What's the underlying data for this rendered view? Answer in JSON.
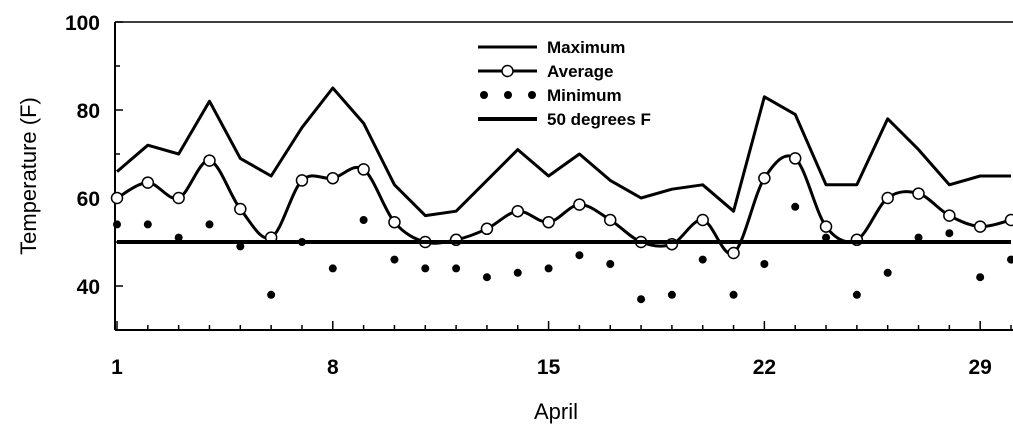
{
  "chart_data": {
    "type": "line",
    "title": "",
    "xlabel": "April",
    "ylabel": "Temperature (F)",
    "x": [
      1,
      2,
      3,
      4,
      5,
      6,
      7,
      8,
      9,
      10,
      11,
      12,
      13,
      14,
      15,
      16,
      17,
      18,
      19,
      20,
      21,
      22,
      23,
      24,
      25,
      26,
      27,
      28,
      29,
      30
    ],
    "xlim": [
      1,
      30
    ],
    "ylim": [
      30,
      100
    ],
    "x_ticks": [
      1,
      8,
      15,
      22,
      29
    ],
    "x_tick_labels": [
      "1",
      "8",
      "15",
      "22",
      "29"
    ],
    "y_ticks": [
      40,
      60,
      80,
      100
    ],
    "y_tick_labels": [
      "40",
      "60",
      "80",
      "100"
    ],
    "grid": false,
    "legend_position": "top-center",
    "series": [
      {
        "name": "Maximum",
        "style": "solid",
        "color": "#000000",
        "values": [
          66,
          72,
          70,
          82,
          69,
          65,
          76,
          85,
          77,
          63,
          56,
          57,
          64,
          71,
          65,
          70,
          64,
          60,
          62,
          63,
          57,
          83,
          79,
          63,
          63,
          78,
          71,
          63,
          65,
          65
        ]
      },
      {
        "name": "Average",
        "style": "line-circle",
        "color": "#000000",
        "values": [
          60,
          63.5,
          60,
          68.5,
          57.5,
          51,
          64,
          64.5,
          66.5,
          54.5,
          50,
          50.5,
          53,
          57,
          54.5,
          58.5,
          55,
          50,
          49.5,
          55,
          47.5,
          64.5,
          69,
          53.5,
          50.5,
          60,
          61,
          56,
          53.5,
          55
        ]
      },
      {
        "name": "Minimum",
        "style": "dotted",
        "color": "#000000",
        "values": [
          54,
          54,
          51,
          54,
          49,
          38,
          50,
          44,
          55,
          46,
          44,
          44,
          42,
          43,
          44,
          47,
          45,
          37,
          38,
          46,
          38,
          45,
          58,
          51,
          38,
          43,
          51,
          52,
          42,
          46
        ]
      },
      {
        "name": "50 degrees F",
        "style": "solid-thick",
        "color": "#000000",
        "values": [
          50,
          50,
          50,
          50,
          50,
          50,
          50,
          50,
          50,
          50,
          50,
          50,
          50,
          50,
          50,
          50,
          50,
          50,
          50,
          50,
          50,
          50,
          50,
          50,
          50,
          50,
          50,
          50,
          50,
          50
        ]
      }
    ]
  }
}
